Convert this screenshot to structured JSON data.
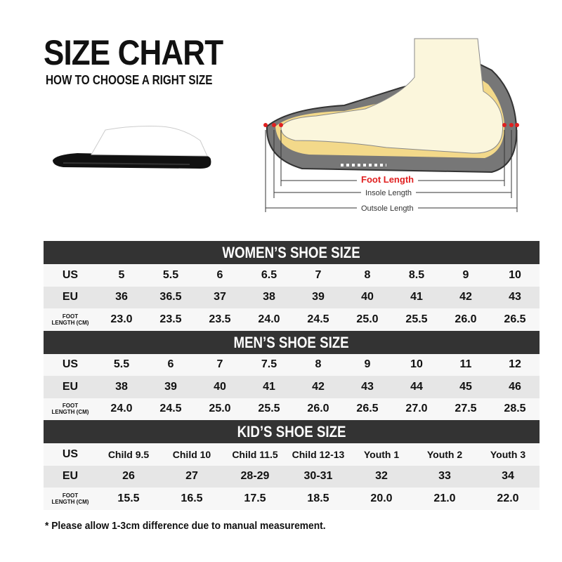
{
  "header": {
    "title": "SIZE CHART",
    "subtitle": "HOW TO CHOOSE A RIGHT SIZE"
  },
  "diagram": {
    "foot_length": "Foot Length",
    "insole_length": "Insole Length",
    "outsole_length": "Outsole Length",
    "accent": "#e02020"
  },
  "row_labels": {
    "us": "US",
    "eu": "EU",
    "foot_top": "FOOT",
    "foot_bottom": "LENGTH (CM)"
  },
  "sections": [
    {
      "title": "WOMEN’S SHOE SIZE",
      "us": [
        "5",
        "5.5",
        "6",
        "6.5",
        "7",
        "8",
        "8.5",
        "9",
        "10"
      ],
      "eu": [
        "36",
        "36.5",
        "37",
        "38",
        "39",
        "40",
        "41",
        "42",
        "43"
      ],
      "foot": [
        "23.0",
        "23.5",
        "23.5",
        "24.0",
        "24.5",
        "25.0",
        "25.5",
        "26.0",
        "26.5"
      ]
    },
    {
      "title": "MEN’S SHOE SIZE",
      "us": [
        "5.5",
        "6",
        "7",
        "7.5",
        "8",
        "9",
        "10",
        "11",
        "12"
      ],
      "eu": [
        "38",
        "39",
        "40",
        "41",
        "42",
        "43",
        "44",
        "45",
        "46"
      ],
      "foot": [
        "24.0",
        "24.5",
        "25.0",
        "25.5",
        "26.0",
        "26.5",
        "27.0",
        "27.5",
        "28.5"
      ]
    },
    {
      "title": "KID’S SHOE SIZE",
      "us": [
        "Child 9.5",
        "Child 10",
        "Child 11.5",
        "Child 12-13",
        "Youth 1",
        "Youth 2",
        "Youth 3"
      ],
      "eu": [
        "26",
        "27",
        "28-29",
        "30-31",
        "32",
        "33",
        "34"
      ],
      "foot": [
        "15.5",
        "16.5",
        "17.5",
        "18.5",
        "20.0",
        "21.0",
        "22.0"
      ]
    }
  ],
  "note": "* Please allow 1-3cm difference due to manual measurement."
}
